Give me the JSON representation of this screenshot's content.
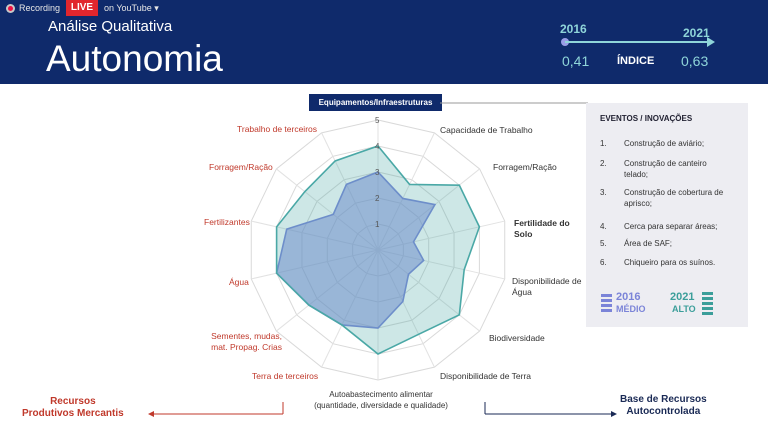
{
  "recording": {
    "label": "Recording",
    "live": "LIVE",
    "stream": "on YouTube"
  },
  "header": {
    "subtitle": "Análise Qualitativa",
    "title": "Autonomia",
    "year_start": "2016",
    "year_end": "2021",
    "index_start": "0,41",
    "index_end": "0,63",
    "index_label": "ÍNDICE"
  },
  "panel": {
    "title": "EVENTOS / INOVAÇÕES",
    "events": [
      {
        "n": "1.",
        "text": "Construção de aviário;"
      },
      {
        "n": "2.",
        "text": "Construção de canteiro telado;"
      },
      {
        "n": "3.",
        "text": "Construção de cobertura de aprisco;"
      },
      {
        "n": "4.",
        "text": "Cerca para separar áreas;"
      },
      {
        "n": "5.",
        "text": "Área de SAF;"
      },
      {
        "n": "6.",
        "text": "Chiqueiro para os suínos."
      }
    ],
    "level_2016_year": "2016",
    "level_2016_label": "MÉDIO",
    "level_2021_year": "2021",
    "level_2021_label": "ALTO"
  },
  "chart_data": {
    "type": "radar",
    "axis_max": 5,
    "ticks": [
      "1",
      "2",
      "3",
      "4",
      "5"
    ],
    "axes": [
      "Equipamentos/Infraestruturas",
      "Capacidade de Trabalho",
      "Forragem/Ração",
      "Fertilidade do Solo",
      "Disponibilidade de Água",
      "Biodiversidade",
      "Disponibilidade de Terra",
      "Autoabastecimento alimentar (quantidade, diversidade e qualidade)",
      "Terra de terceiros",
      "Sementes, mudas, mat. Propag. Crias",
      "Água",
      "Fertilizantes",
      "Forragem/Ração",
      "Trabalho de terceiros"
    ],
    "axis_kind": [
      "own",
      "own",
      "own",
      "own",
      "own",
      "own",
      "own",
      "own",
      "market",
      "market",
      "market",
      "market",
      "market",
      "market"
    ],
    "series": [
      {
        "year": "2016",
        "color": "#7b84d8",
        "values": [
          3,
          2.2,
          2.8,
          1.4,
          1.8,
          1.5,
          2.2,
          3,
          3.2,
          3.4,
          4,
          3.6,
          2.2,
          2.8
        ]
      },
      {
        "year": "2021",
        "color": "#4aa8a6",
        "values": [
          4,
          2.8,
          4,
          4,
          3.4,
          4,
          3.6,
          4,
          3.2,
          3.4,
          4,
          4,
          3.6,
          3.8
        ]
      }
    ]
  },
  "bottom": {
    "left": [
      "Recursos",
      "Produtivos Mercantis"
    ],
    "right": [
      "Base de Recursos",
      "Autocontrolada"
    ]
  }
}
